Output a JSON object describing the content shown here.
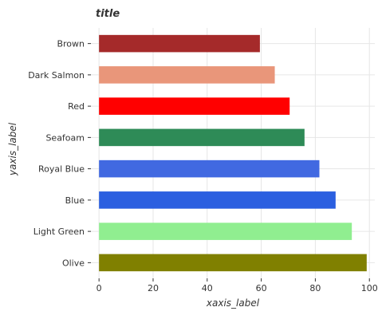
{
  "chart_data": {
    "type": "bar",
    "orientation": "horizontal",
    "title": "title",
    "xlabel": "xaxis_label",
    "ylabel": "yaxis_label",
    "categories": [
      "Olive",
      "Light Green",
      "Blue",
      "Royal Blue",
      "Seafoam",
      "Red",
      "Dark Salmon",
      "Brown"
    ],
    "values": [
      99,
      93.5,
      87.5,
      81.5,
      76,
      70.5,
      65,
      59.5
    ],
    "colors": [
      "#808000",
      "#90ee90",
      "#2b5fe0",
      "#4169e1",
      "#2e8b57",
      "#ff0000",
      "#e9967a",
      "#a52a2a"
    ],
    "xlim": [
      -3,
      102
    ],
    "xticks": [
      0,
      20,
      40,
      60,
      80,
      100
    ],
    "grid": true,
    "legend": "none"
  }
}
